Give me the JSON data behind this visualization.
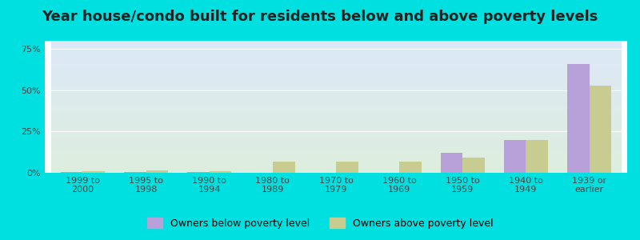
{
  "title": "Year house/condo built for residents below and above poverty levels",
  "categories": [
    "1999 to\n2000",
    "1995 to\n1998",
    "1990 to\n1994",
    "1980 to\n1989",
    "1970 to\n1979",
    "1960 to\n1969",
    "1950 to\n1959",
    "1940 to\n1949",
    "1939 or\nearlier"
  ],
  "below_poverty": [
    0.5,
    0.5,
    0.5,
    0.0,
    0.0,
    0.0,
    12.0,
    20.0,
    66.0
  ],
  "above_poverty": [
    1.0,
    1.5,
    1.0,
    7.0,
    7.0,
    7.0,
    9.0,
    20.0,
    53.0
  ],
  "below_color": "#b8a0d8",
  "above_color": "#c8cc90",
  "background_outer": "#00e0e0",
  "background_plot_top": "#dde8f8",
  "background_plot_bottom": "#ddeedd",
  "yticks": [
    0,
    25,
    50,
    75
  ],
  "ylim": [
    0,
    80
  ],
  "legend_below": "Owners below poverty level",
  "legend_above": "Owners above poverty level",
  "title_fontsize": 13,
  "tick_fontsize": 8,
  "legend_fontsize": 9
}
